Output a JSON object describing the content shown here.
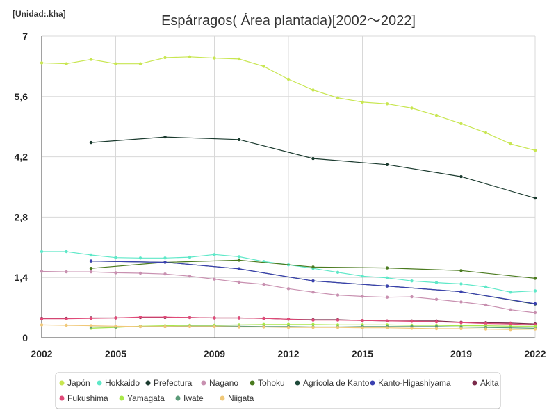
{
  "chart_data": {
    "type": "line",
    "title": "Espárragos( Área plantada)[2002～2022]",
    "unit_label": "[Unidad:.kha]",
    "xlabel": "",
    "ylabel": "",
    "xlim": [
      2002,
      2022
    ],
    "ylim": [
      0,
      7
    ],
    "x_ticks": [
      {
        "value": 2002,
        "label": "2002"
      },
      {
        "value": 2005,
        "label": "2005"
      },
      {
        "value": 2009,
        "label": "2009"
      },
      {
        "value": 2012,
        "label": "2012"
      },
      {
        "value": 2015,
        "label": "2015"
      },
      {
        "value": 2019,
        "label": "2019"
      },
      {
        "value": 2022,
        "label": "2022"
      }
    ],
    "y_ticks": [
      {
        "value": 0,
        "label": "0"
      },
      {
        "value": 1.4,
        "label": "1,4"
      },
      {
        "value": 2.8,
        "label": "2,8"
      },
      {
        "value": 4.2,
        "label": "4,2"
      },
      {
        "value": 5.6,
        "label": "5,6"
      },
      {
        "value": 7,
        "label": "7"
      }
    ],
    "series": [
      {
        "name": "Japón",
        "color": "#c8e650",
        "points": [
          [
            2002,
            6.38
          ],
          [
            2003,
            6.36
          ],
          [
            2004,
            6.46
          ],
          [
            2005,
            6.36
          ],
          [
            2006,
            6.36
          ],
          [
            2007,
            6.5
          ],
          [
            2008,
            6.52
          ],
          [
            2009,
            6.49
          ],
          [
            2010,
            6.47
          ],
          [
            2011,
            6.3
          ],
          [
            2012,
            6.0
          ],
          [
            2013,
            5.75
          ],
          [
            2014,
            5.57
          ],
          [
            2015,
            5.47
          ],
          [
            2016,
            5.43
          ],
          [
            2017,
            5.33
          ],
          [
            2018,
            5.16
          ],
          [
            2019,
            4.97
          ],
          [
            2020,
            4.76
          ],
          [
            2021,
            4.5
          ],
          [
            2022,
            4.35
          ]
        ]
      },
      {
        "name": "Hokkaido",
        "color": "#5ee8c8",
        "points": [
          [
            2002,
            2.0
          ],
          [
            2003,
            2.0
          ],
          [
            2004,
            1.92
          ],
          [
            2005,
            1.86
          ],
          [
            2006,
            1.85
          ],
          [
            2007,
            1.85
          ],
          [
            2008,
            1.87
          ],
          [
            2009,
            1.93
          ],
          [
            2010,
            1.88
          ],
          [
            2011,
            1.77
          ],
          [
            2012,
            1.69
          ],
          [
            2013,
            1.61
          ],
          [
            2014,
            1.52
          ],
          [
            2015,
            1.43
          ],
          [
            2016,
            1.39
          ],
          [
            2017,
            1.32
          ],
          [
            2018,
            1.28
          ],
          [
            2019,
            1.25
          ],
          [
            2020,
            1.18
          ],
          [
            2021,
            1.06
          ],
          [
            2022,
            1.09
          ]
        ]
      },
      {
        "name": "Prefectura",
        "color": "#1a3a2e",
        "points": [
          [
            2004,
            4.53
          ],
          [
            2007,
            4.66
          ],
          [
            2010,
            4.6
          ],
          [
            2013,
            4.16
          ],
          [
            2016,
            4.02
          ],
          [
            2019,
            3.74
          ],
          [
            2022,
            3.24
          ]
        ]
      },
      {
        "name": "Nagano",
        "color": "#c890b0",
        "points": [
          [
            2002,
            1.54
          ],
          [
            2003,
            1.53
          ],
          [
            2004,
            1.53
          ],
          [
            2005,
            1.51
          ],
          [
            2006,
            1.5
          ],
          [
            2007,
            1.48
          ],
          [
            2008,
            1.43
          ],
          [
            2009,
            1.36
          ],
          [
            2010,
            1.29
          ],
          [
            2011,
            1.24
          ],
          [
            2012,
            1.14
          ],
          [
            2013,
            1.06
          ],
          [
            2014,
            0.99
          ],
          [
            2015,
            0.96
          ],
          [
            2016,
            0.94
          ],
          [
            2017,
            0.95
          ],
          [
            2018,
            0.89
          ],
          [
            2019,
            0.83
          ],
          [
            2020,
            0.76
          ],
          [
            2021,
            0.65
          ],
          [
            2022,
            0.58
          ]
        ]
      },
      {
        "name": "Tohoku",
        "color": "#4a7a1e",
        "points": [
          [
            2004,
            1.61
          ],
          [
            2007,
            1.75
          ],
          [
            2010,
            1.8
          ],
          [
            2013,
            1.64
          ],
          [
            2016,
            1.62
          ],
          [
            2019,
            1.56
          ],
          [
            2022,
            1.38
          ]
        ]
      },
      {
        "name": "Agrícola de Kanto",
        "color": "#1e4a3a",
        "points": [
          [
            2004,
            1.78
          ],
          [
            2007,
            1.75
          ],
          [
            2010,
            1.6
          ],
          [
            2013,
            1.32
          ],
          [
            2016,
            1.2
          ],
          [
            2019,
            1.07
          ],
          [
            2022,
            0.78
          ]
        ]
      },
      {
        "name": "Kanto-Higashiyama",
        "color": "#3a40b0",
        "points": [
          [
            2004,
            1.78
          ],
          [
            2007,
            1.75
          ],
          [
            2010,
            1.6
          ],
          [
            2013,
            1.32
          ],
          [
            2016,
            1.2
          ],
          [
            2019,
            1.07
          ],
          [
            2022,
            0.79
          ]
        ]
      },
      {
        "name": "Akita",
        "color": "#7a2a4a",
        "points": [
          [
            2002,
            0.45
          ],
          [
            2003,
            0.45
          ],
          [
            2004,
            0.46
          ],
          [
            2005,
            0.46
          ],
          [
            2006,
            0.47
          ],
          [
            2007,
            0.47
          ],
          [
            2008,
            0.47
          ],
          [
            2009,
            0.46
          ],
          [
            2010,
            0.46
          ],
          [
            2011,
            0.45
          ],
          [
            2012,
            0.43
          ],
          [
            2013,
            0.42
          ],
          [
            2014,
            0.42
          ],
          [
            2015,
            0.4
          ],
          [
            2016,
            0.39
          ],
          [
            2017,
            0.39
          ],
          [
            2018,
            0.39
          ],
          [
            2019,
            0.36
          ],
          [
            2020,
            0.35
          ],
          [
            2021,
            0.34
          ],
          [
            2022,
            0.32
          ]
        ]
      },
      {
        "name": "Fukushima",
        "color": "#e04a78",
        "points": [
          [
            2002,
            0.44
          ],
          [
            2003,
            0.44
          ],
          [
            2004,
            0.45
          ],
          [
            2005,
            0.46
          ],
          [
            2006,
            0.48
          ],
          [
            2007,
            0.48
          ],
          [
            2008,
            0.47
          ],
          [
            2009,
            0.46
          ],
          [
            2010,
            0.46
          ],
          [
            2011,
            0.45
          ],
          [
            2012,
            0.43
          ],
          [
            2013,
            0.41
          ],
          [
            2014,
            0.41
          ],
          [
            2015,
            0.4
          ],
          [
            2016,
            0.39
          ],
          [
            2017,
            0.38
          ],
          [
            2018,
            0.37
          ],
          [
            2019,
            0.35
          ],
          [
            2020,
            0.33
          ],
          [
            2021,
            0.32
          ],
          [
            2022,
            0.3
          ]
        ]
      },
      {
        "name": "Yamagata",
        "color": "#a8e84a",
        "points": [
          [
            2004,
            0.22
          ],
          [
            2005,
            0.24
          ],
          [
            2006,
            0.27
          ],
          [
            2007,
            0.28
          ],
          [
            2008,
            0.29
          ],
          [
            2009,
            0.29
          ],
          [
            2010,
            0.3
          ],
          [
            2011,
            0.31
          ],
          [
            2012,
            0.31
          ],
          [
            2013,
            0.31
          ],
          [
            2014,
            0.3
          ],
          [
            2015,
            0.3
          ],
          [
            2016,
            0.3
          ],
          [
            2017,
            0.29
          ],
          [
            2018,
            0.29
          ],
          [
            2019,
            0.28
          ],
          [
            2020,
            0.28
          ],
          [
            2021,
            0.27
          ],
          [
            2022,
            0.27
          ]
        ]
      },
      {
        "name": "Iwate",
        "color": "#5a9a78",
        "points": [
          [
            2004,
            0.25
          ],
          [
            2005,
            0.25
          ],
          [
            2006,
            0.26
          ],
          [
            2007,
            0.26
          ],
          [
            2008,
            0.27
          ],
          [
            2009,
            0.27
          ],
          [
            2010,
            0.27
          ],
          [
            2011,
            0.26
          ],
          [
            2012,
            0.26
          ],
          [
            2013,
            0.25
          ],
          [
            2014,
            0.25
          ],
          [
            2015,
            0.26
          ],
          [
            2016,
            0.26
          ],
          [
            2017,
            0.26
          ],
          [
            2018,
            0.26
          ],
          [
            2019,
            0.25
          ],
          [
            2020,
            0.24
          ],
          [
            2021,
            0.23
          ],
          [
            2022,
            0.22
          ]
        ]
      },
      {
        "name": "Niigata",
        "color": "#f0c878",
        "points": [
          [
            2002,
            0.3
          ],
          [
            2003,
            0.29
          ],
          [
            2004,
            0.28
          ],
          [
            2005,
            0.27
          ],
          [
            2006,
            0.26
          ],
          [
            2007,
            0.26
          ],
          [
            2008,
            0.26
          ],
          [
            2009,
            0.26
          ],
          [
            2010,
            0.25
          ],
          [
            2011,
            0.25
          ],
          [
            2012,
            0.24
          ],
          [
            2013,
            0.24
          ],
          [
            2014,
            0.24
          ],
          [
            2015,
            0.23
          ],
          [
            2016,
            0.23
          ],
          [
            2017,
            0.22
          ],
          [
            2018,
            0.21
          ],
          [
            2019,
            0.21
          ],
          [
            2020,
            0.2
          ],
          [
            2021,
            0.19
          ],
          [
            2022,
            0.2
          ]
        ]
      }
    ]
  }
}
